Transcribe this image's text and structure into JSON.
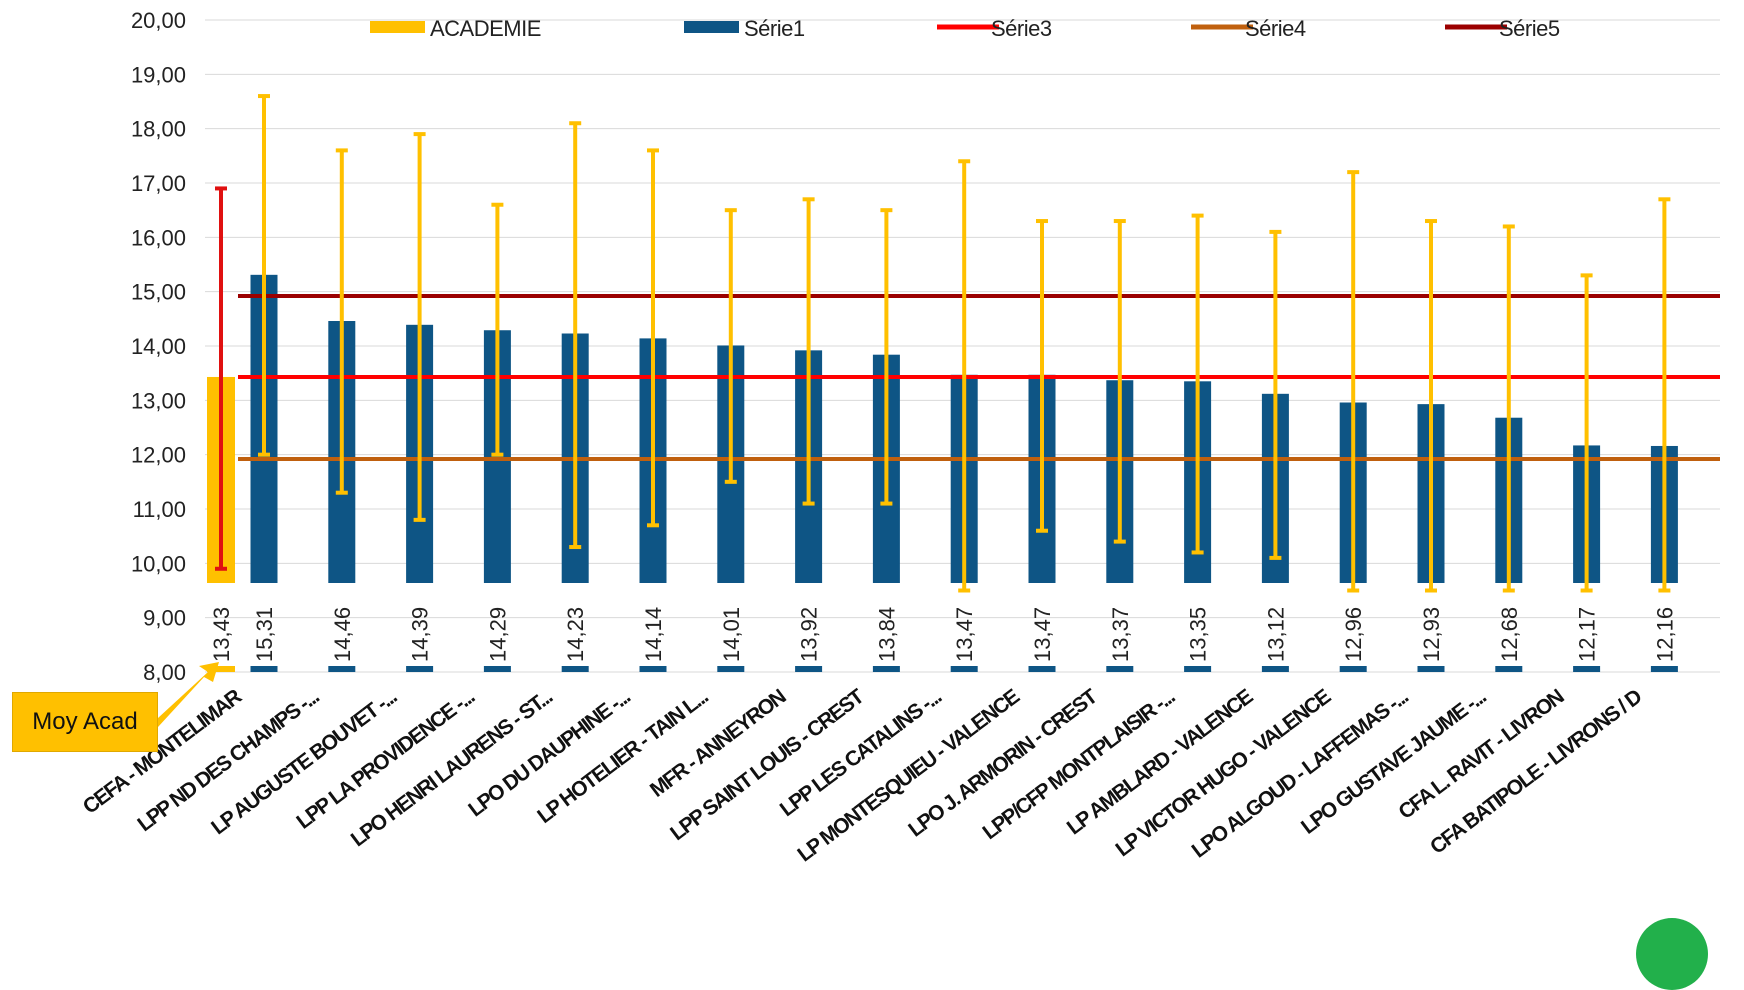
{
  "callout": {
    "text": "Moy Acad"
  },
  "colors": {
    "academie": "#ffc000",
    "serie1": "#0e5585",
    "serie3": "#ff0000",
    "serie4": "#c0600e",
    "serie5": "#9b0000",
    "errbar": "#ffc000",
    "acad_errbar": "#e01010",
    "acad_label": "#e01010"
  },
  "chart_data": {
    "type": "bar",
    "ylim": [
      8,
      20
    ],
    "y_ticks": [
      "8,00",
      "9,00",
      "10,00",
      "11,00",
      "12,00",
      "13,00",
      "14,00",
      "15,00",
      "16,00",
      "17,00",
      "18,00",
      "19,00",
      "20,00"
    ],
    "legend": {
      "position": "top",
      "entries": [
        {
          "name": "ACADEMIE",
          "marker": "bar"
        },
        {
          "name": "Série1",
          "marker": "bar"
        },
        {
          "name": "Série3",
          "marker": "line"
        },
        {
          "name": "Série4",
          "marker": "line"
        },
        {
          "name": "Série5",
          "marker": "line"
        }
      ]
    },
    "academie": {
      "value": 13.43,
      "label": "13,43",
      "err_low": 9.9,
      "err_high": 16.9
    },
    "categories": [
      "CEFA - MONTELIMAR",
      "LPP ND DES CHAMPS -...",
      "LP AUGUSTE BOUVET -...",
      "LPP LA PROVIDENCE -...",
      "LPO HENRI LAURENS - ST...",
      "LPO DU DAUPHINE -...",
      "LP HOTELIER - TAIN L...",
      "MFR - ANNEYRON",
      "LPP SAINT LOUIS - CREST",
      "LPP LES CATALINS -...",
      "LP MONTESQUIEU - VALENCE",
      "LPO J. ARMORIN - CREST",
      "LPP/CFP MONTPLAISIR -...",
      "LP AMBLARD - VALENCE",
      "LP VICTOR HUGO - VALENCE",
      "LPO ALGOUD - LAFFEMAS -...",
      "LPO GUSTAVE JAUME -...",
      "CFA L. RAVIT - LIVRON",
      "CFA BATIPOLE - LIVRONS / D"
    ],
    "series": [
      {
        "name": "Série1",
        "values": [
          15.31,
          14.46,
          14.39,
          14.29,
          14.23,
          14.14,
          14.01,
          13.92,
          13.84,
          13.47,
          13.47,
          13.37,
          13.35,
          13.12,
          12.96,
          12.93,
          12.68,
          12.17,
          12.16
        ],
        "labels": [
          "15,31",
          "14,46",
          "14,39",
          "14,29",
          "14,23",
          "14,14",
          "14,01",
          "13,92",
          "13,84",
          "13,47",
          "13,47",
          "13,37",
          "13,35",
          "13,12",
          "12,96",
          "12,93",
          "12,68",
          "12,17",
          "12,16"
        ],
        "err_low": [
          12.0,
          11.3,
          10.8,
          12.0,
          10.3,
          10.7,
          11.5,
          11.1,
          11.1,
          9.5,
          10.6,
          10.4,
          10.2,
          10.1,
          9.5,
          9.5,
          9.5,
          9.5,
          9.5
        ],
        "err_high": [
          18.6,
          17.6,
          17.9,
          16.6,
          18.1,
          17.6,
          16.5,
          16.7,
          16.5,
          17.4,
          16.3,
          16.3,
          16.4,
          16.1,
          17.2,
          16.3,
          16.2,
          15.3,
          16.7
        ]
      }
    ],
    "lines": [
      {
        "name": "Série3",
        "value": 13.43
      },
      {
        "name": "Série4",
        "value": 11.92
      },
      {
        "name": "Série5",
        "value": 14.92
      }
    ]
  }
}
